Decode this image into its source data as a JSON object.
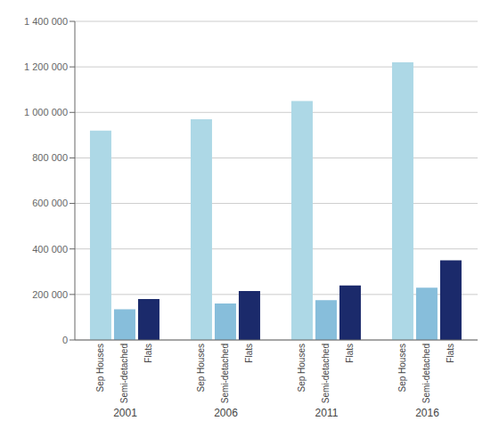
{
  "chart_data": {
    "type": "bar",
    "categories": [
      "2001",
      "2006",
      "2011",
      "2016"
    ],
    "series": [
      {
        "name": "Sep Houses",
        "color": "#ADD8E6",
        "values": [
          920000,
          970000,
          1050000,
          1220000
        ]
      },
      {
        "name": "Semi-detached",
        "color": "#87BEDB",
        "values": [
          135000,
          160000,
          175000,
          230000
        ]
      },
      {
        "name": "Flats",
        "color": "#1B2A6B",
        "values": [
          180000,
          215000,
          240000,
          350000
        ]
      }
    ],
    "ylim": [
      0,
      1400000
    ],
    "yticks": [
      0,
      {
        "value": 200000,
        "label": "200 000"
      },
      {
        "value": 400000,
        "label": "400 000"
      },
      {
        "value": 600000,
        "label": "600 000"
      },
      {
        "value": 800000,
        "label": "800 000"
      },
      {
        "value": 1000000,
        "label": "1 000 000"
      },
      {
        "value": 1200000,
        "label": "1 200 000"
      },
      {
        "value": 1400000,
        "label": "1 400 000"
      }
    ],
    "grid": true
  }
}
